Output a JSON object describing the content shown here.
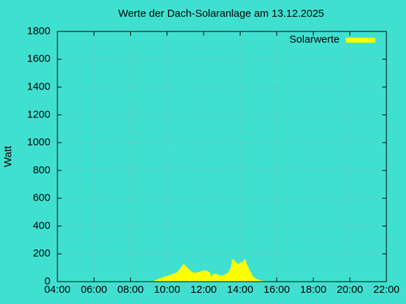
{
  "chart_data": {
    "type": "area",
    "title": "Werte der Dach-Solaranlage am 13.12.2025",
    "y_label": "Watt",
    "xlim": [
      "04:00",
      "22:00"
    ],
    "xticks": [
      "04:00",
      "06:00",
      "08:00",
      "10:00",
      "12:00",
      "14:00",
      "16:00",
      "18:00",
      "20:00",
      "22:00"
    ],
    "ylim": [
      0,
      1800
    ],
    "yticks": [
      0,
      200,
      400,
      600,
      800,
      1000,
      1200,
      1400,
      1600,
      1800
    ],
    "grid": true,
    "legend": "top-right",
    "x": [
      "09:10",
      "09:20",
      "09:30",
      "09:40",
      "09:50",
      "10:00",
      "10:10",
      "10:20",
      "10:30",
      "10:40",
      "10:50",
      "10:55",
      "11:00",
      "11:10",
      "11:20",
      "11:30",
      "11:40",
      "11:50",
      "12:00",
      "12:10",
      "12:20",
      "12:25",
      "12:30",
      "12:40",
      "12:50",
      "13:00",
      "13:10",
      "13:20",
      "13:30",
      "13:35",
      "13:45",
      "13:55",
      "14:00",
      "14:10",
      "14:15",
      "14:20",
      "14:30",
      "14:40",
      "14:50",
      "15:00",
      "15:10",
      "15:20"
    ],
    "series": [
      {
        "name": "Solarwerte",
        "color": "#ffff00",
        "values": [
          0,
          5,
          15,
          25,
          30,
          40,
          45,
          55,
          60,
          80,
          110,
          125,
          110,
          90,
          70,
          60,
          65,
          70,
          80,
          75,
          65,
          20,
          50,
          55,
          45,
          40,
          50,
          60,
          100,
          160,
          140,
          120,
          135,
          140,
          160,
          130,
          80,
          40,
          20,
          10,
          5,
          0
        ]
      }
    ]
  }
}
